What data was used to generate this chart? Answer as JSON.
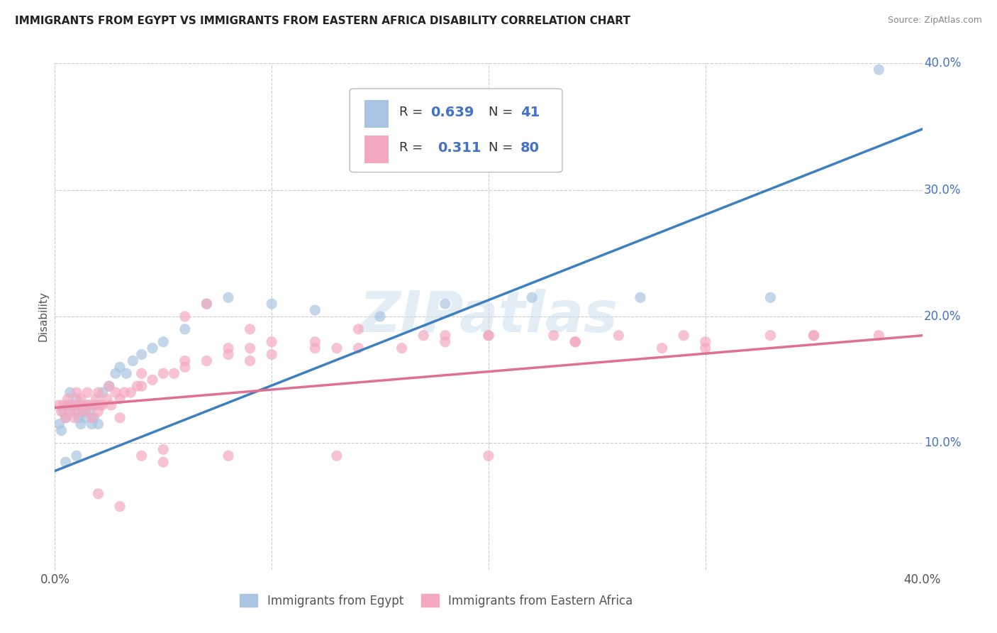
{
  "title": "IMMIGRANTS FROM EGYPT VS IMMIGRANTS FROM EASTERN AFRICA DISABILITY CORRELATION CHART",
  "source": "Source: ZipAtlas.com",
  "ylabel": "Disability",
  "watermark": "ZIPatlas",
  "egypt_R": 0.639,
  "egypt_N": 41,
  "eastern_africa_R": 0.311,
  "eastern_africa_N": 80,
  "xlim": [
    0.0,
    0.4
  ],
  "ylim": [
    0.0,
    0.4
  ],
  "egypt_color": "#a8c4e0",
  "eastern_africa_color": "#f4a8c0",
  "egypt_line_color": "#3d7fbf",
  "eastern_africa_line_color": "#e07090",
  "legend_R_color": "#4472c4",
  "background_color": "#ffffff",
  "grid_color": "#cccccc",
  "egypt_line_x0": 0.0,
  "egypt_line_y0": 0.078,
  "egypt_line_x1": 0.4,
  "egypt_line_y1": 0.348,
  "ea_line_x0": 0.0,
  "ea_line_y0": 0.128,
  "ea_line_x1": 0.4,
  "ea_line_y1": 0.185,
  "egypt_scatter_x": [
    0.002,
    0.003,
    0.004,
    0.005,
    0.006,
    0.007,
    0.008,
    0.009,
    0.01,
    0.011,
    0.012,
    0.013,
    0.014,
    0.015,
    0.016,
    0.017,
    0.018,
    0.019,
    0.02,
    0.022,
    0.025,
    0.028,
    0.03,
    0.033,
    0.036,
    0.04,
    0.045,
    0.05,
    0.06,
    0.07,
    0.08,
    0.1,
    0.12,
    0.15,
    0.18,
    0.22,
    0.27,
    0.33,
    0.005,
    0.01,
    0.38
  ],
  "egypt_scatter_y": [
    0.115,
    0.11,
    0.125,
    0.12,
    0.13,
    0.14,
    0.13,
    0.125,
    0.135,
    0.12,
    0.115,
    0.125,
    0.12,
    0.13,
    0.125,
    0.115,
    0.12,
    0.13,
    0.115,
    0.14,
    0.145,
    0.155,
    0.16,
    0.155,
    0.165,
    0.17,
    0.175,
    0.18,
    0.19,
    0.21,
    0.215,
    0.21,
    0.205,
    0.2,
    0.21,
    0.215,
    0.215,
    0.215,
    0.085,
    0.09,
    0.395
  ],
  "ea_scatter_x": [
    0.002,
    0.003,
    0.004,
    0.005,
    0.006,
    0.007,
    0.008,
    0.009,
    0.01,
    0.011,
    0.012,
    0.013,
    0.014,
    0.015,
    0.016,
    0.017,
    0.018,
    0.019,
    0.02,
    0.021,
    0.022,
    0.024,
    0.026,
    0.028,
    0.03,
    0.032,
    0.035,
    0.038,
    0.04,
    0.045,
    0.05,
    0.055,
    0.06,
    0.07,
    0.08,
    0.09,
    0.1,
    0.12,
    0.14,
    0.16,
    0.18,
    0.2,
    0.23,
    0.26,
    0.3,
    0.35,
    0.03,
    0.04,
    0.05,
    0.06,
    0.07,
    0.08,
    0.09,
    0.1,
    0.12,
    0.14,
    0.17,
    0.2,
    0.24,
    0.29,
    0.33,
    0.38,
    0.025,
    0.04,
    0.06,
    0.09,
    0.13,
    0.18,
    0.24,
    0.3,
    0.02,
    0.03,
    0.05,
    0.08,
    0.13,
    0.2,
    0.28,
    0.35,
    0.01,
    0.02
  ],
  "ea_scatter_y": [
    0.13,
    0.125,
    0.13,
    0.12,
    0.135,
    0.125,
    0.13,
    0.12,
    0.13,
    0.125,
    0.135,
    0.13,
    0.125,
    0.14,
    0.13,
    0.12,
    0.13,
    0.135,
    0.125,
    0.13,
    0.13,
    0.135,
    0.13,
    0.14,
    0.135,
    0.14,
    0.14,
    0.145,
    0.145,
    0.15,
    0.155,
    0.155,
    0.16,
    0.165,
    0.17,
    0.165,
    0.17,
    0.175,
    0.175,
    0.175,
    0.18,
    0.185,
    0.185,
    0.185,
    0.175,
    0.185,
    0.12,
    0.09,
    0.085,
    0.2,
    0.21,
    0.175,
    0.19,
    0.18,
    0.18,
    0.19,
    0.185,
    0.185,
    0.18,
    0.185,
    0.185,
    0.185,
    0.145,
    0.155,
    0.165,
    0.175,
    0.175,
    0.185,
    0.18,
    0.18,
    0.06,
    0.05,
    0.095,
    0.09,
    0.09,
    0.09,
    0.175,
    0.185,
    0.14,
    0.14
  ]
}
